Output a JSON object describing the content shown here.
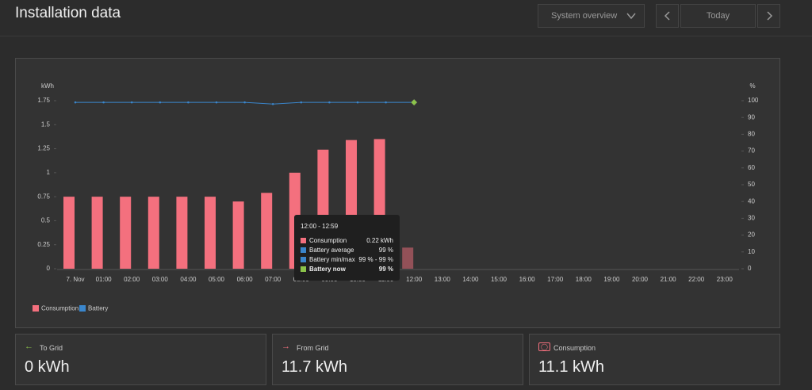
{
  "header": {
    "title": "Installation data",
    "view_select": "System overview",
    "date_label": "Today"
  },
  "chart_data": {
    "type": "bar",
    "y_label": "kWh",
    "y2_label": "%",
    "categories": [
      "7. Nov",
      "01:00",
      "02:00",
      "03:00",
      "04:00",
      "05:00",
      "06:00",
      "07:00",
      "08:00",
      "09:00",
      "10:00",
      "11:00",
      "12:00",
      "13:00",
      "14:00",
      "15:00",
      "16:00",
      "17:00",
      "18:00",
      "19:00",
      "20:00",
      "21:00",
      "22:00",
      "23:00"
    ],
    "series": [
      {
        "name": "Consumption",
        "color": "#f4707e",
        "values": [
          0.75,
          0.75,
          0.75,
          0.75,
          0.75,
          0.75,
          0.7,
          0.79,
          1.0,
          1.24,
          1.34,
          1.35,
          0.22,
          null,
          null,
          null,
          null,
          null,
          null,
          null,
          null,
          null,
          null,
          null
        ]
      },
      {
        "name": "Battery",
        "color": "#3a86cc",
        "axis": "y2",
        "values": [
          99,
          99,
          99,
          99,
          99,
          99,
          99,
          98,
          99,
          99,
          99,
          99,
          99,
          null,
          null,
          null,
          null,
          null,
          null,
          null,
          null,
          null,
          null,
          null
        ]
      }
    ],
    "active_index": 12,
    "ylim": [
      0,
      1.75
    ],
    "yticks": [
      0,
      0.25,
      0.5,
      0.75,
      1,
      1.25,
      1.5,
      1.75
    ],
    "y2lim": [
      0,
      100
    ],
    "y2ticks": [
      0,
      10,
      20,
      30,
      40,
      50,
      60,
      70,
      80,
      90,
      100
    ]
  },
  "tooltip": {
    "title": "12:00 - 12:59",
    "rows": [
      {
        "label": "Consumption",
        "value": "0.22 kWh",
        "color": "#f4707e"
      },
      {
        "label": "Battery average",
        "value": "99 %",
        "color": "#3a86cc"
      },
      {
        "label": "Battery min/max",
        "value": "99 % - 99 %",
        "color": "#3a86cc"
      },
      {
        "label": "Battery now",
        "value": "99 %",
        "color": "#8bc34a"
      }
    ]
  },
  "cards": [
    {
      "label": "To Grid",
      "value": "0 kWh"
    },
    {
      "label": "From Grid",
      "value": "11.7 kWh"
    },
    {
      "label": "Consumption",
      "value": "11.1 kWh"
    }
  ]
}
